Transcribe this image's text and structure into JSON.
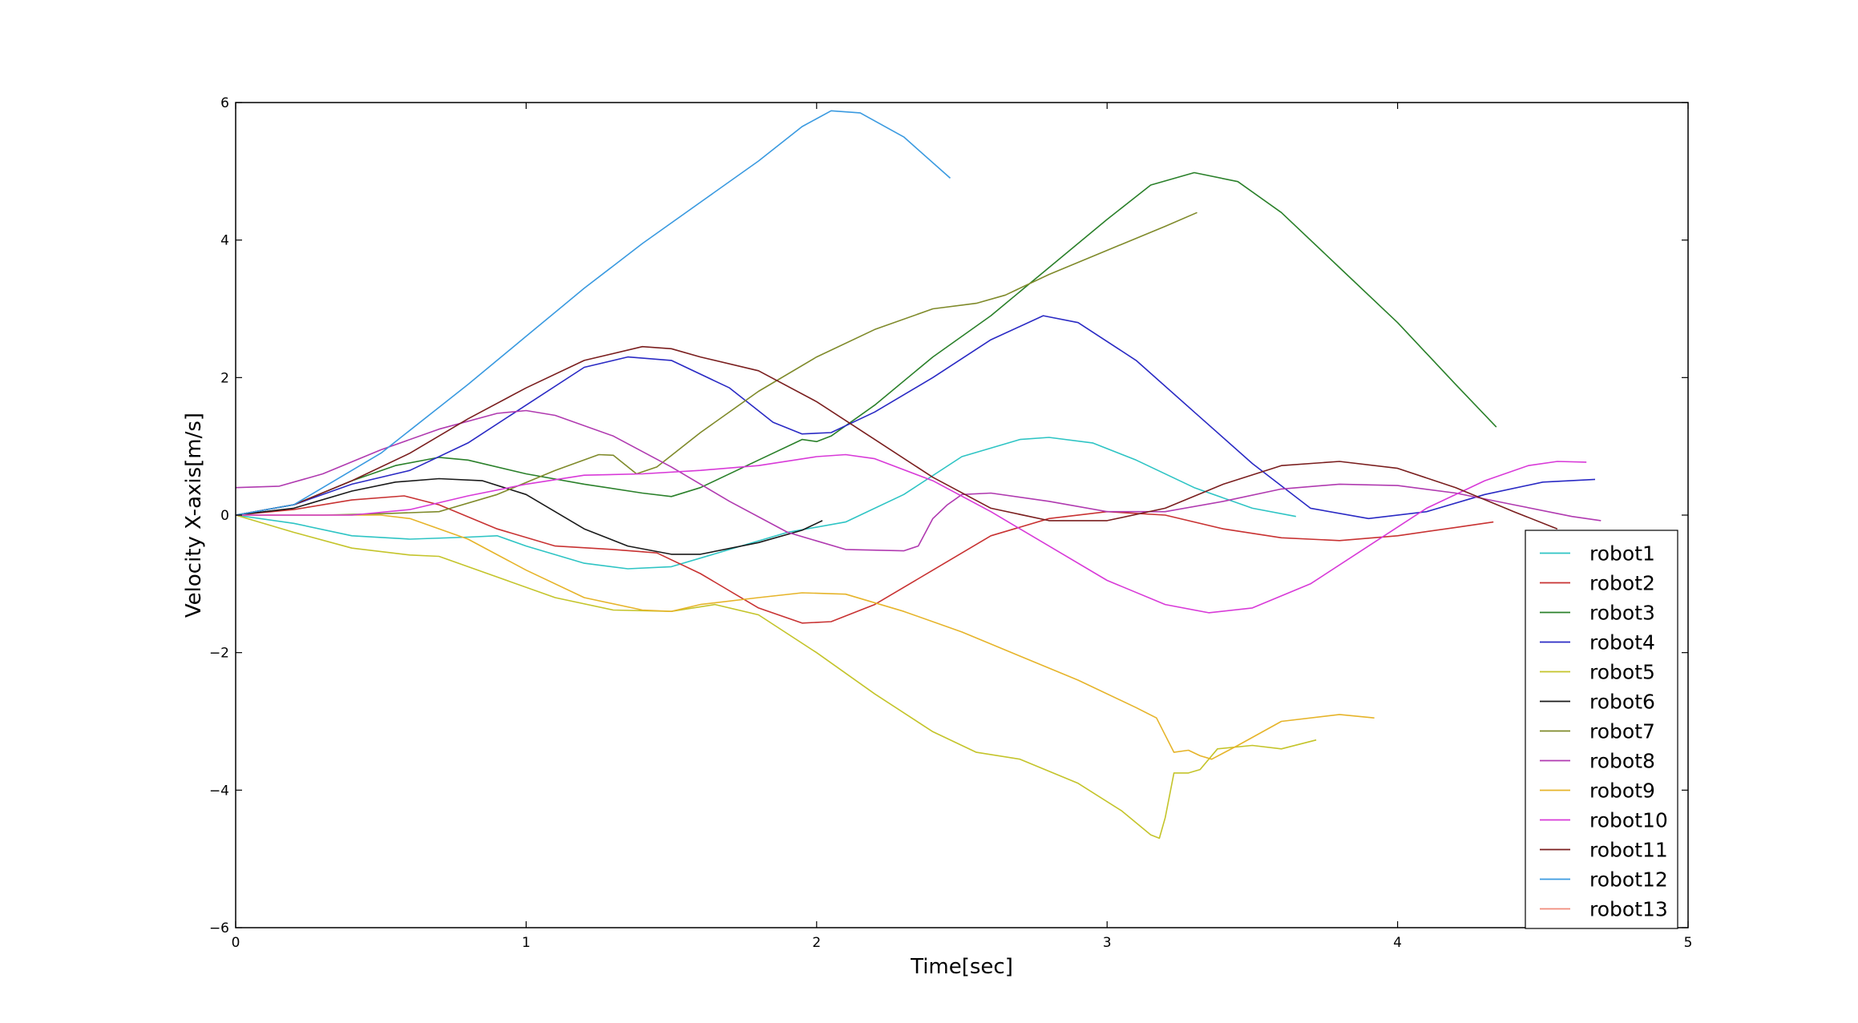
{
  "chart_data": {
    "type": "line",
    "title": "",
    "xlabel": "Time[sec]",
    "ylabel": "Velocity X-axis[m/s]",
    "xlim": [
      0,
      5
    ],
    "ylim": [
      -6,
      6
    ],
    "xticks": [
      0,
      1,
      2,
      3,
      4,
      5
    ],
    "yticks": [
      -6,
      -4,
      -2,
      0,
      2,
      4,
      6
    ],
    "xtick_labels": [
      "0",
      "1",
      "2",
      "3",
      "4",
      "5"
    ],
    "ytick_labels": [
      "−6",
      "−4",
      "−2",
      "0",
      "2",
      "4",
      "6"
    ],
    "grid": false,
    "legend_position": "lower-right",
    "series": [
      {
        "name": "robot1",
        "color": "#2ec4c4",
        "points": [
          [
            0,
            0
          ],
          [
            0.2,
            -0.12
          ],
          [
            0.4,
            -0.3
          ],
          [
            0.6,
            -0.35
          ],
          [
            0.8,
            -0.32
          ],
          [
            0.9,
            -0.3
          ],
          [
            1.0,
            -0.45
          ],
          [
            1.2,
            -0.7
          ],
          [
            1.35,
            -0.78
          ],
          [
            1.5,
            -0.75
          ],
          [
            1.7,
            -0.5
          ],
          [
            1.9,
            -0.25
          ],
          [
            2.1,
            -0.1
          ],
          [
            2.3,
            0.3
          ],
          [
            2.5,
            0.85
          ],
          [
            2.7,
            1.1
          ],
          [
            2.8,
            1.13
          ],
          [
            2.95,
            1.05
          ],
          [
            3.1,
            0.8
          ],
          [
            3.3,
            0.4
          ],
          [
            3.5,
            0.1
          ],
          [
            3.65,
            -0.02
          ]
        ]
      },
      {
        "name": "robot2",
        "color": "#c83232",
        "points": [
          [
            0,
            0
          ],
          [
            0.2,
            0.08
          ],
          [
            0.4,
            0.22
          ],
          [
            0.58,
            0.28
          ],
          [
            0.7,
            0.15
          ],
          [
            0.9,
            -0.2
          ],
          [
            1.1,
            -0.45
          ],
          [
            1.3,
            -0.5
          ],
          [
            1.45,
            -0.55
          ],
          [
            1.6,
            -0.85
          ],
          [
            1.8,
            -1.35
          ],
          [
            1.95,
            -1.57
          ],
          [
            2.05,
            -1.55
          ],
          [
            2.2,
            -1.3
          ],
          [
            2.4,
            -0.8
          ],
          [
            2.6,
            -0.3
          ],
          [
            2.8,
            -0.05
          ],
          [
            3.0,
            0.05
          ],
          [
            3.2,
            0.0
          ],
          [
            3.4,
            -0.2
          ],
          [
            3.6,
            -0.33
          ],
          [
            3.8,
            -0.37
          ],
          [
            4.0,
            -0.3
          ],
          [
            4.2,
            -0.18
          ],
          [
            4.33,
            -0.1
          ]
        ]
      },
      {
        "name": "robot3",
        "color": "#2a802a",
        "points": [
          [
            0,
            0
          ],
          [
            0.2,
            0.15
          ],
          [
            0.4,
            0.5
          ],
          [
            0.55,
            0.72
          ],
          [
            0.7,
            0.84
          ],
          [
            0.8,
            0.8
          ],
          [
            1.0,
            0.6
          ],
          [
            1.2,
            0.45
          ],
          [
            1.4,
            0.32
          ],
          [
            1.5,
            0.27
          ],
          [
            1.6,
            0.4
          ],
          [
            1.8,
            0.8
          ],
          [
            1.95,
            1.1
          ],
          [
            2.0,
            1.07
          ],
          [
            2.05,
            1.15
          ],
          [
            2.2,
            1.6
          ],
          [
            2.4,
            2.3
          ],
          [
            2.6,
            2.9
          ],
          [
            2.8,
            3.6
          ],
          [
            3.0,
            4.3
          ],
          [
            3.15,
            4.8
          ],
          [
            3.3,
            4.98
          ],
          [
            3.45,
            4.85
          ],
          [
            3.6,
            4.4
          ],
          [
            3.8,
            3.6
          ],
          [
            4.0,
            2.8
          ],
          [
            4.2,
            1.9
          ],
          [
            4.34,
            1.28
          ]
        ]
      },
      {
        "name": "robot4",
        "color": "#2a2ac4",
        "points": [
          [
            0,
            0
          ],
          [
            0.2,
            0.15
          ],
          [
            0.4,
            0.45
          ],
          [
            0.6,
            0.65
          ],
          [
            0.8,
            1.05
          ],
          [
            1.0,
            1.6
          ],
          [
            1.2,
            2.15
          ],
          [
            1.35,
            2.3
          ],
          [
            1.5,
            2.25
          ],
          [
            1.7,
            1.85
          ],
          [
            1.85,
            1.35
          ],
          [
            1.95,
            1.18
          ],
          [
            2.05,
            1.2
          ],
          [
            2.2,
            1.5
          ],
          [
            2.4,
            2.0
          ],
          [
            2.6,
            2.55
          ],
          [
            2.78,
            2.9
          ],
          [
            2.9,
            2.8
          ],
          [
            3.1,
            2.25
          ],
          [
            3.3,
            1.5
          ],
          [
            3.5,
            0.75
          ],
          [
            3.7,
            0.1
          ],
          [
            3.9,
            -0.05
          ],
          [
            4.1,
            0.05
          ],
          [
            4.3,
            0.3
          ],
          [
            4.5,
            0.48
          ],
          [
            4.68,
            0.52
          ]
        ]
      },
      {
        "name": "robot5",
        "color": "#c4c42a",
        "points": [
          [
            0,
            0
          ],
          [
            0.2,
            -0.25
          ],
          [
            0.4,
            -0.48
          ],
          [
            0.6,
            -0.58
          ],
          [
            0.7,
            -0.6
          ],
          [
            0.9,
            -0.9
          ],
          [
            1.1,
            -1.2
          ],
          [
            1.3,
            -1.38
          ],
          [
            1.5,
            -1.4
          ],
          [
            1.65,
            -1.3
          ],
          [
            1.8,
            -1.45
          ],
          [
            2.0,
            -2.0
          ],
          [
            2.2,
            -2.6
          ],
          [
            2.4,
            -3.15
          ],
          [
            2.55,
            -3.45
          ],
          [
            2.7,
            -3.55
          ],
          [
            2.9,
            -3.9
          ],
          [
            3.05,
            -4.3
          ],
          [
            3.15,
            -4.65
          ],
          [
            3.18,
            -4.7
          ],
          [
            3.2,
            -4.4
          ],
          [
            3.23,
            -3.75
          ],
          [
            3.28,
            -3.75
          ],
          [
            3.32,
            -3.7
          ],
          [
            3.38,
            -3.4
          ],
          [
            3.5,
            -3.35
          ],
          [
            3.6,
            -3.4
          ],
          [
            3.72,
            -3.27
          ]
        ]
      },
      {
        "name": "robot6",
        "color": "#1a1a1a",
        "points": [
          [
            0,
            0
          ],
          [
            0.2,
            0.1
          ],
          [
            0.4,
            0.35
          ],
          [
            0.55,
            0.48
          ],
          [
            0.7,
            0.53
          ],
          [
            0.85,
            0.5
          ],
          [
            1.0,
            0.3
          ],
          [
            1.2,
            -0.2
          ],
          [
            1.35,
            -0.45
          ],
          [
            1.5,
            -0.57
          ],
          [
            1.6,
            -0.57
          ],
          [
            1.8,
            -0.4
          ],
          [
            1.95,
            -0.22
          ],
          [
            2.02,
            -0.08
          ]
        ]
      },
      {
        "name": "robot7",
        "color": "#7f8a2a",
        "points": [
          [
            0,
            0
          ],
          [
            0.3,
            0.0
          ],
          [
            0.5,
            0.02
          ],
          [
            0.7,
            0.05
          ],
          [
            0.9,
            0.3
          ],
          [
            1.1,
            0.65
          ],
          [
            1.25,
            0.88
          ],
          [
            1.3,
            0.87
          ],
          [
            1.38,
            0.6
          ],
          [
            1.45,
            0.7
          ],
          [
            1.6,
            1.2
          ],
          [
            1.8,
            1.8
          ],
          [
            2.0,
            2.3
          ],
          [
            2.2,
            2.7
          ],
          [
            2.4,
            3.0
          ],
          [
            2.55,
            3.08
          ],
          [
            2.65,
            3.2
          ],
          [
            2.8,
            3.5
          ],
          [
            3.0,
            3.85
          ],
          [
            3.2,
            4.2
          ],
          [
            3.31,
            4.4
          ]
        ]
      },
      {
        "name": "robot8",
        "color": "#b03ab0",
        "points": [
          [
            0,
            0.4
          ],
          [
            0.15,
            0.42
          ],
          [
            0.3,
            0.6
          ],
          [
            0.5,
            0.95
          ],
          [
            0.7,
            1.25
          ],
          [
            0.9,
            1.48
          ],
          [
            1.0,
            1.52
          ],
          [
            1.1,
            1.45
          ],
          [
            1.3,
            1.15
          ],
          [
            1.5,
            0.7
          ],
          [
            1.7,
            0.2
          ],
          [
            1.9,
            -0.25
          ],
          [
            2.1,
            -0.5
          ],
          [
            2.3,
            -0.52
          ],
          [
            2.35,
            -0.45
          ],
          [
            2.4,
            -0.05
          ],
          [
            2.45,
            0.15
          ],
          [
            2.5,
            0.3
          ],
          [
            2.6,
            0.32
          ],
          [
            2.8,
            0.2
          ],
          [
            3.0,
            0.05
          ],
          [
            3.2,
            0.05
          ],
          [
            3.4,
            0.2
          ],
          [
            3.6,
            0.38
          ],
          [
            3.8,
            0.45
          ],
          [
            4.0,
            0.43
          ],
          [
            4.2,
            0.32
          ],
          [
            4.4,
            0.15
          ],
          [
            4.6,
            -0.02
          ],
          [
            4.7,
            -0.08
          ]
        ]
      },
      {
        "name": "robot9",
        "color": "#e6b42a",
        "points": [
          [
            0,
            0
          ],
          [
            0.5,
            0.0
          ],
          [
            0.6,
            -0.05
          ],
          [
            0.8,
            -0.35
          ],
          [
            1.0,
            -0.8
          ],
          [
            1.2,
            -1.2
          ],
          [
            1.4,
            -1.38
          ],
          [
            1.5,
            -1.4
          ],
          [
            1.6,
            -1.3
          ],
          [
            1.8,
            -1.2
          ],
          [
            1.95,
            -1.13
          ],
          [
            2.1,
            -1.15
          ],
          [
            2.3,
            -1.4
          ],
          [
            2.5,
            -1.7
          ],
          [
            2.7,
            -2.05
          ],
          [
            2.9,
            -2.4
          ],
          [
            3.1,
            -2.8
          ],
          [
            3.17,
            -2.95
          ],
          [
            3.2,
            -3.2
          ],
          [
            3.23,
            -3.45
          ],
          [
            3.28,
            -3.42
          ],
          [
            3.32,
            -3.5
          ],
          [
            3.36,
            -3.55
          ],
          [
            3.45,
            -3.35
          ],
          [
            3.6,
            -3.0
          ],
          [
            3.8,
            -2.9
          ],
          [
            3.92,
            -2.95
          ]
        ]
      },
      {
        "name": "robot10",
        "color": "#d83ad8",
        "points": [
          [
            0,
            0
          ],
          [
            0.4,
            0.0
          ],
          [
            0.6,
            0.08
          ],
          [
            0.8,
            0.28
          ],
          [
            1.0,
            0.45
          ],
          [
            1.2,
            0.58
          ],
          [
            1.4,
            0.6
          ],
          [
            1.6,
            0.65
          ],
          [
            1.8,
            0.72
          ],
          [
            2.0,
            0.85
          ],
          [
            2.1,
            0.88
          ],
          [
            2.2,
            0.82
          ],
          [
            2.4,
            0.5
          ],
          [
            2.6,
            0.05
          ],
          [
            2.8,
            -0.45
          ],
          [
            3.0,
            -0.95
          ],
          [
            3.2,
            -1.3
          ],
          [
            3.35,
            -1.42
          ],
          [
            3.5,
            -1.35
          ],
          [
            3.7,
            -1.0
          ],
          [
            3.9,
            -0.45
          ],
          [
            4.1,
            0.1
          ],
          [
            4.3,
            0.5
          ],
          [
            4.45,
            0.72
          ],
          [
            4.55,
            0.78
          ],
          [
            4.65,
            0.77
          ]
        ]
      },
      {
        "name": "robot11",
        "color": "#7a1e1e",
        "points": [
          [
            0,
            0
          ],
          [
            0.2,
            0.15
          ],
          [
            0.4,
            0.5
          ],
          [
            0.6,
            0.9
          ],
          [
            0.8,
            1.4
          ],
          [
            1.0,
            1.85
          ],
          [
            1.2,
            2.25
          ],
          [
            1.4,
            2.45
          ],
          [
            1.5,
            2.42
          ],
          [
            1.6,
            2.3
          ],
          [
            1.8,
            2.1
          ],
          [
            2.0,
            1.65
          ],
          [
            2.2,
            1.1
          ],
          [
            2.4,
            0.55
          ],
          [
            2.6,
            0.1
          ],
          [
            2.8,
            -0.08
          ],
          [
            3.0,
            -0.08
          ],
          [
            3.2,
            0.1
          ],
          [
            3.4,
            0.45
          ],
          [
            3.6,
            0.72
          ],
          [
            3.8,
            0.78
          ],
          [
            4.0,
            0.68
          ],
          [
            4.2,
            0.4
          ],
          [
            4.4,
            0.05
          ],
          [
            4.55,
            -0.2
          ]
        ]
      },
      {
        "name": "robot12",
        "color": "#3a9ae0",
        "points": [
          [
            0,
            0
          ],
          [
            0.2,
            0.15
          ],
          [
            0.5,
            0.9
          ],
          [
            0.8,
            1.9
          ],
          [
            1.0,
            2.6
          ],
          [
            1.2,
            3.3
          ],
          [
            1.4,
            3.95
          ],
          [
            1.6,
            4.55
          ],
          [
            1.8,
            5.15
          ],
          [
            1.95,
            5.65
          ],
          [
            2.05,
            5.88
          ],
          [
            2.15,
            5.85
          ],
          [
            2.3,
            5.5
          ],
          [
            2.46,
            4.9
          ]
        ]
      },
      {
        "name": "robot13",
        "color": "#f08a7a",
        "points": []
      }
    ]
  }
}
